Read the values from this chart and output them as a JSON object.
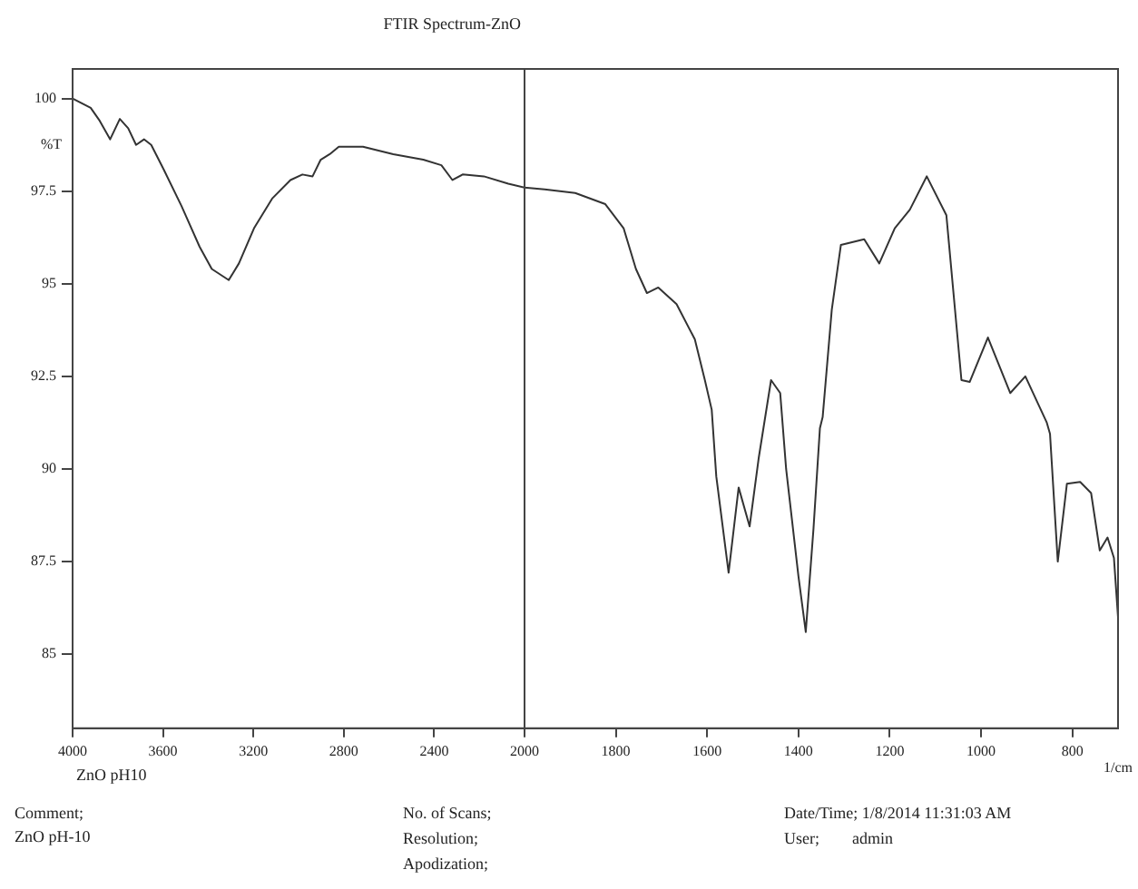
{
  "chart_data": [
    {
      "type": "line",
      "title": "FTIR Spectrum-ZnO",
      "ylabel": "%T",
      "series": [
        {
          "color": "#333333",
          "x": [
            4000,
            3920,
            3880,
            3834,
            3791,
            3754,
            3719,
            3684,
            3652,
            3598,
            3518,
            3438,
            3384,
            3309,
            3264,
            3197,
            3117,
            3036,
            2983,
            2938,
            2902,
            2862,
            2822,
            2715,
            2581,
            2448,
            2368,
            2319,
            2274,
            2180,
            2072,
            2000
          ],
          "values": [
            100,
            99.75,
            99.4,
            98.9,
            99.45,
            99.2,
            98.75,
            98.9,
            98.75,
            98.1,
            97.1,
            96.0,
            95.4,
            95.1,
            95.55,
            96.5,
            97.3,
            97.8,
            97.95,
            97.9,
            98.35,
            98.5,
            98.7,
            98.7,
            98.5,
            98.35,
            98.2,
            97.8,
            97.95,
            97.9,
            97.7,
            97.6
          ]
        }
      ],
      "xlim": [
        4000,
        2000
      ],
      "xticks": [
        4000,
        3600,
        3200,
        2800,
        2400,
        2000
      ],
      "ylim": [
        83,
        100.8
      ],
      "yticks": [
        100,
        97.5,
        95,
        92.5,
        90,
        87.5,
        85
      ],
      "grid": false,
      "legend": false,
      "marker": "none",
      "line_style": "solid",
      "annotations": [
        "ZnO pH10",
        "Comment;",
        "ZnO pH-10",
        "No. of Scans;",
        "Resolution;",
        "Apodization;",
        "Date/Time; 1/8/2014 11:31:03 AM",
        "User;        admin"
      ]
    },
    {
      "type": "line",
      "xlabel": "1/cm",
      "series": [
        {
          "color": "#333333",
          "x": [
            2000,
            1956,
            1889,
            1823,
            1783,
            1756,
            1732,
            1707,
            1667,
            1627,
            1605,
            1590,
            1580,
            1553,
            1531,
            1507,
            1487,
            1460,
            1440,
            1427,
            1400,
            1384,
            1367,
            1353,
            1347,
            1327,
            1307,
            1256,
            1223,
            1189,
            1156,
            1119,
            1076,
            1043,
            1025,
            985,
            936,
            903,
            856,
            849,
            832,
            812,
            783,
            759,
            740,
            723,
            709,
            700
          ],
          "values": [
            97.6,
            97.55,
            97.45,
            97.15,
            96.5,
            95.4,
            94.75,
            94.9,
            94.45,
            93.5,
            92.4,
            91.6,
            89.8,
            87.2,
            89.5,
            88.45,
            90.3,
            92.4,
            92.05,
            90.0,
            87.1,
            85.6,
            88.4,
            91.1,
            91.4,
            94.3,
            96.05,
            96.2,
            95.55,
            96.5,
            97.0,
            97.9,
            96.85,
            92.4,
            92.35,
            93.55,
            92.05,
            92.5,
            91.25,
            90.95,
            87.5,
            89.6,
            89.65,
            89.35,
            87.8,
            88.15,
            87.6,
            86.0
          ]
        }
      ],
      "xlim": [
        2000,
        700
      ],
      "xticks": [
        1800,
        1600,
        1400,
        1200,
        1000,
        800
      ],
      "ylim": [
        83,
        100.8
      ],
      "yticks": [
        100,
        97.5,
        95,
        92.5,
        90,
        87.5,
        85
      ],
      "tick_labels": "x",
      "grid": false,
      "legend": false,
      "marker": "none",
      "line_style": "solid"
    }
  ]
}
